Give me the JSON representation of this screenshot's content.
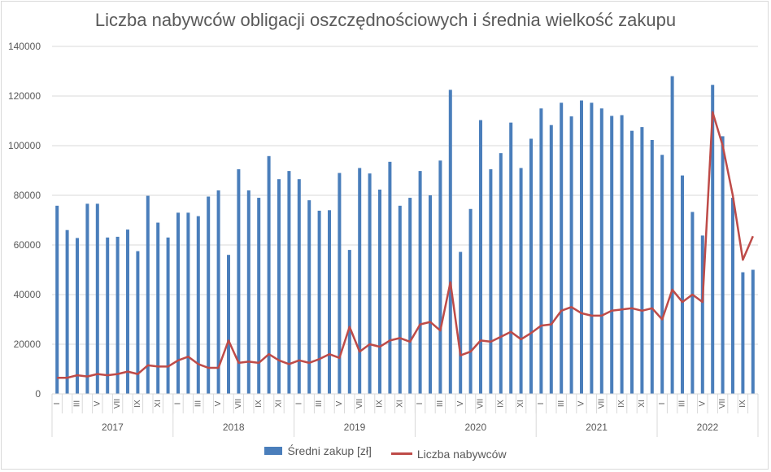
{
  "chart_data": {
    "type": "bar+line",
    "title": "Liczba nabywców obligacji oszczędnościowych i średnia wielkość zakupu",
    "ylim": [
      0,
      140000
    ],
    "yticks": [
      "0",
      "20000",
      "40000",
      "60000",
      "80000",
      "100000",
      "120000",
      "140000"
    ],
    "years": [
      "2017",
      "2018",
      "2019",
      "2020",
      "2021",
      "2022"
    ],
    "month_ticks": [
      "I",
      "",
      "III",
      "",
      "V",
      "",
      "VII",
      "",
      "IX",
      "",
      "XI",
      ""
    ],
    "grid": true,
    "legend_position": "bottom",
    "series": [
      {
        "name": "Średni zakup [zł]",
        "kind": "bar",
        "color": "#4a7ebb",
        "values": [
          75800,
          66000,
          62800,
          76600,
          76600,
          63000,
          63300,
          66200,
          57500,
          79800,
          69000,
          63000,
          73000,
          73000,
          71600,
          79500,
          82000,
          56000,
          90500,
          82000,
          79000,
          95800,
          86500,
          89800,
          86500,
          78000,
          73800,
          74000,
          89000,
          58000,
          91000,
          88800,
          82300,
          93500,
          75800,
          79000,
          89800,
          80000,
          94000,
          122500,
          57200,
          74500,
          110300,
          90500,
          97000,
          109300,
          91000,
          102800,
          115000,
          108300,
          117300,
          111800,
          118200,
          117300,
          115000,
          112000,
          112300,
          106000,
          107500,
          102300,
          96300,
          128000,
          88000,
          73300,
          63800,
          124500,
          103800,
          79000,
          49000,
          50000
        ]
      },
      {
        "name": "Liczba nabywców",
        "kind": "line",
        "color": "#be4b48",
        "values": [
          6500,
          6500,
          7500,
          7000,
          8000,
          7500,
          8000,
          9000,
          8000,
          11500,
          11000,
          11000,
          13500,
          15000,
          12000,
          10500,
          10500,
          21500,
          12500,
          13000,
          12500,
          16000,
          13500,
          12000,
          13500,
          12500,
          14000,
          16000,
          14500,
          27000,
          17000,
          20000,
          19000,
          21500,
          22500,
          21000,
          28000,
          29000,
          25500,
          45000,
          15500,
          17000,
          21500,
          21000,
          23000,
          25000,
          22000,
          24500,
          27500,
          28000,
          33500,
          35000,
          32500,
          31500,
          31500,
          33500,
          34000,
          34500,
          33500,
          34500,
          30000,
          42000,
          37000,
          40000,
          37000,
          113500,
          100000,
          80000,
          54000,
          63500
        ]
      }
    ]
  }
}
